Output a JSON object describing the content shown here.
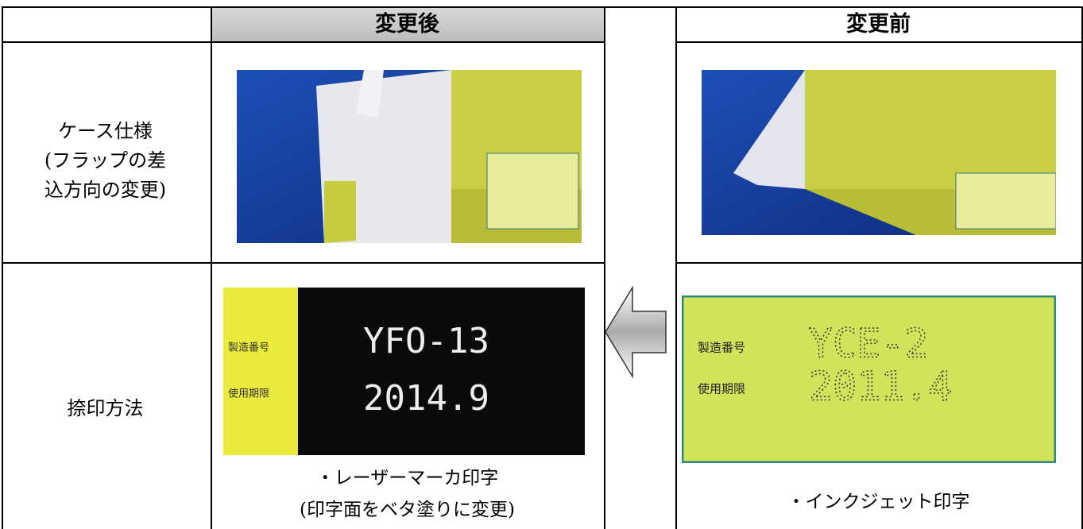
{
  "table": {
    "headers": [
      "変更後",
      "変更前"
    ],
    "rows": [
      {
        "label": [
          "ケース仕様",
          "(フラップの差",
          "込方向の変更)"
        ]
      },
      {
        "label": [
          "捺印方法"
        ],
        "after": {
          "fields": [
            "製造番号",
            "使用期限"
          ],
          "codes": [
            "YFO-13",
            "2014.9"
          ],
          "caption": [
            "・レーザーマーカ印字",
            "(印字面をベタ塗りに変更)"
          ]
        },
        "before": {
          "fields": [
            "製造番号",
            "使用期限"
          ],
          "codes": [
            "YCE-2",
            "2011.4"
          ],
          "caption": [
            "・インクジェット印字"
          ]
        }
      }
    ]
  }
}
